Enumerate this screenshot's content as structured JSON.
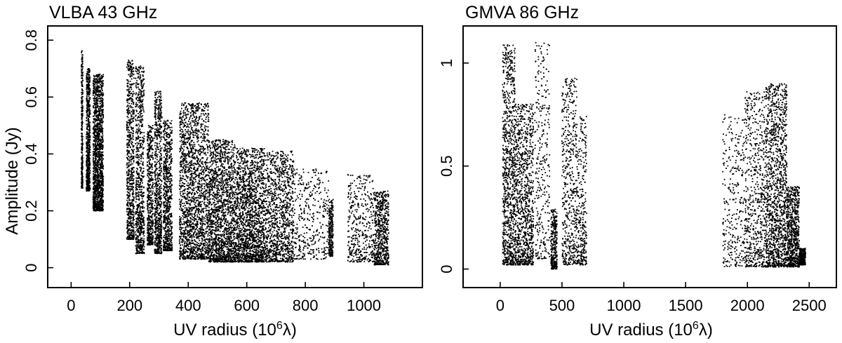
{
  "chart_data": [
    {
      "type": "scatter",
      "title": "VLBA 43 GHz",
      "xlabel": {
        "prefix": "UV radius (10",
        "sup": "6",
        "suffix": "λ)"
      },
      "ylabel": "Amplitude (Jy)",
      "xlim": [
        -80,
        1200
      ],
      "ylim": [
        -0.07,
        0.85
      ],
      "xticks": [
        0,
        200,
        400,
        600,
        800,
        1000
      ],
      "xtick_labels": [
        "0",
        "200",
        "400",
        "600",
        "800",
        "1000"
      ],
      "yticks": [
        0,
        0.2,
        0.4,
        0.6,
        0.8
      ],
      "ytick_labels": [
        "0",
        "0.2",
        "0.4",
        "0.6",
        "0.8"
      ],
      "grid": false,
      "clusters": [
        {
          "x": [
            35,
            40
          ],
          "ymin": 0.28,
          "ymax": 0.77,
          "n": 300
        },
        {
          "x": [
            52,
            65
          ],
          "ymin": 0.27,
          "ymax": 0.7,
          "n": 600
        },
        {
          "x": [
            75,
            110
          ],
          "ymin": 0.2,
          "ymax": 0.68,
          "n": 1500
        },
        {
          "x": [
            190,
            215
          ],
          "ymin": 0.1,
          "ymax": 0.73,
          "n": 700
        },
        {
          "x": [
            220,
            250
          ],
          "ymin": 0.05,
          "ymax": 0.71,
          "n": 800
        },
        {
          "x": [
            260,
            280
          ],
          "ymin": 0.08,
          "ymax": 0.5,
          "n": 500
        },
        {
          "x": [
            285,
            310
          ],
          "ymin": 0.05,
          "ymax": 0.62,
          "n": 700
        },
        {
          "x": [
            315,
            345
          ],
          "ymin": 0.06,
          "ymax": 0.52,
          "n": 700
        },
        {
          "x": [
            370,
            470
          ],
          "ymin": 0.03,
          "ymax": 0.58,
          "n": 1800
        },
        {
          "x": [
            470,
            560
          ],
          "ymin": 0.02,
          "ymax": 0.45,
          "n": 1600
        },
        {
          "x": [
            560,
            660
          ],
          "ymin": 0.02,
          "ymax": 0.42,
          "n": 1700
        },
        {
          "x": [
            660,
            760
          ],
          "ymin": 0.02,
          "ymax": 0.41,
          "n": 1100
        },
        {
          "x": [
            760,
            880
          ],
          "ymin": 0.03,
          "ymax": 0.35,
          "n": 350
        },
        {
          "x": [
            880,
            895
          ],
          "ymin": 0.04,
          "ymax": 0.24,
          "n": 250
        },
        {
          "x": [
            945,
            1035
          ],
          "ymin": 0.02,
          "ymax": 0.33,
          "n": 400
        },
        {
          "x": [
            1035,
            1085
          ],
          "ymin": 0.01,
          "ymax": 0.27,
          "n": 600
        }
      ]
    },
    {
      "type": "scatter",
      "title": "GMVA 86 GHz",
      "xlabel": {
        "prefix": "UV radius (10",
        "sup": "6",
        "suffix": "λ)"
      },
      "ylabel": "",
      "xlim": [
        -300,
        2720
      ],
      "ylim": [
        -0.09,
        1.18
      ],
      "xticks": [
        0,
        500,
        1000,
        1500,
        2000,
        2500
      ],
      "xtick_labels": [
        "0",
        "500",
        "1000",
        "1500",
        "2000",
        "2500"
      ],
      "yticks": [
        0,
        0.5,
        1
      ],
      "ytick_labels": [
        "0",
        "0.5",
        "1"
      ],
      "grid": false,
      "clusters": [
        {
          "x": [
            20,
            120
          ],
          "ymin": 0.02,
          "ymax": 1.09,
          "n": 900
        },
        {
          "x": [
            120,
            270
          ],
          "ymin": 0.02,
          "ymax": 0.8,
          "n": 1000
        },
        {
          "x": [
            280,
            400
          ],
          "ymin": 0.05,
          "ymax": 1.1,
          "n": 300
        },
        {
          "x": [
            410,
            460
          ],
          "ymin": 0.0,
          "ymax": 0.29,
          "n": 300
        },
        {
          "x": [
            500,
            620
          ],
          "ymin": 0.02,
          "ymax": 0.93,
          "n": 500
        },
        {
          "x": [
            620,
            700
          ],
          "ymin": 0.02,
          "ymax": 0.75,
          "n": 300
        },
        {
          "x": [
            1800,
            1980
          ],
          "ymin": 0.01,
          "ymax": 0.75,
          "n": 300
        },
        {
          "x": [
            1980,
            2150
          ],
          "ymin": 0.01,
          "ymax": 0.86,
          "n": 600
        },
        {
          "x": [
            2150,
            2320
          ],
          "ymin": 0.01,
          "ymax": 0.9,
          "n": 1300
        },
        {
          "x": [
            2320,
            2420
          ],
          "ymin": 0.01,
          "ymax": 0.4,
          "n": 700
        },
        {
          "x": [
            2420,
            2470
          ],
          "ymin": 0.02,
          "ymax": 0.1,
          "n": 300
        }
      ]
    }
  ]
}
